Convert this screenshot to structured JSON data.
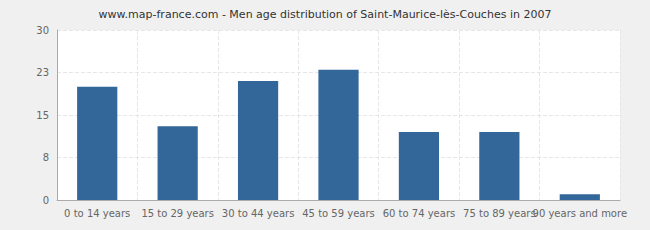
{
  "chart_data": {
    "type": "bar",
    "title": "www.map-france.com - Men age distribution of Saint-Maurice-lès-Couches in 2007",
    "categories": [
      "0 to 14 years",
      "15 to 29 years",
      "30 to 44 years",
      "45 to 59 years",
      "60 to 74 years",
      "75 to 89 years",
      "90 years and more"
    ],
    "values": [
      20,
      13,
      21,
      23,
      12,
      12,
      1
    ],
    "color": "#336699",
    "ylim": [
      0,
      30
    ],
    "yticks": [
      0,
      {
        "value": 7.5,
        "label": "8"
      },
      15,
      {
        "value": 22.5,
        "label": "23"
      },
      30
    ],
    "grid": true
  }
}
